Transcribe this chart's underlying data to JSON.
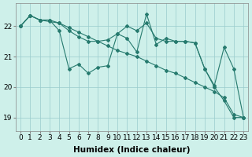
{
  "line1": {
    "x": [
      0,
      1,
      2,
      3,
      4,
      5,
      6,
      7,
      8,
      9,
      10,
      11,
      12,
      13,
      14,
      15,
      16,
      17,
      18,
      19,
      20,
      21,
      22,
      23
    ],
    "y": [
      22.0,
      22.35,
      22.2,
      22.2,
      21.85,
      20.6,
      20.75,
      20.45,
      20.65,
      20.7,
      21.75,
      21.6,
      21.15,
      22.4,
      21.4,
      21.6,
      21.5,
      21.5,
      21.45,
      20.6,
      20.0,
      19.55,
      19.0,
      19.0
    ]
  },
  "line2": {
    "x": [
      0,
      1,
      2,
      3,
      4,
      5,
      6,
      7,
      8,
      9,
      10,
      11,
      12,
      13,
      14,
      15,
      16,
      17,
      18,
      19,
      20,
      21,
      22,
      23
    ],
    "y": [
      22.0,
      22.35,
      22.2,
      22.2,
      22.1,
      21.95,
      21.8,
      21.65,
      21.5,
      21.35,
      21.2,
      21.1,
      21.0,
      20.85,
      20.7,
      20.55,
      20.45,
      20.3,
      20.15,
      20.0,
      19.85,
      19.65,
      19.1,
      19.0
    ]
  },
  "line3": {
    "x": [
      0,
      1,
      2,
      3,
      4,
      5,
      6,
      7,
      8,
      9,
      10,
      11,
      12,
      13,
      14,
      15,
      16,
      17,
      18,
      19,
      20,
      21,
      22,
      23
    ],
    "y": [
      22.0,
      22.35,
      22.2,
      22.15,
      22.1,
      21.85,
      21.65,
      21.5,
      21.5,
      21.55,
      21.75,
      22.0,
      21.85,
      22.1,
      21.6,
      21.5,
      21.5,
      21.5,
      21.45,
      20.6,
      20.05,
      21.3,
      20.6,
      19.0
    ]
  },
  "color": "#267a6e",
  "bg_color": "#cef0ea",
  "grid_color": "#99cccc",
  "xlabel": "Humidex (Indice chaleur)",
  "xlabel_fontsize": 7.5,
  "tick_fontsize": 6.5,
  "ylim": [
    18.55,
    22.75
  ],
  "xlim": [
    -0.5,
    23.5
  ],
  "yticks": [
    19,
    20,
    21,
    22
  ],
  "xticks": [
    0,
    1,
    2,
    3,
    4,
    5,
    6,
    7,
    8,
    9,
    10,
    11,
    12,
    13,
    14,
    15,
    16,
    17,
    18,
    19,
    20,
    21,
    22,
    23
  ]
}
